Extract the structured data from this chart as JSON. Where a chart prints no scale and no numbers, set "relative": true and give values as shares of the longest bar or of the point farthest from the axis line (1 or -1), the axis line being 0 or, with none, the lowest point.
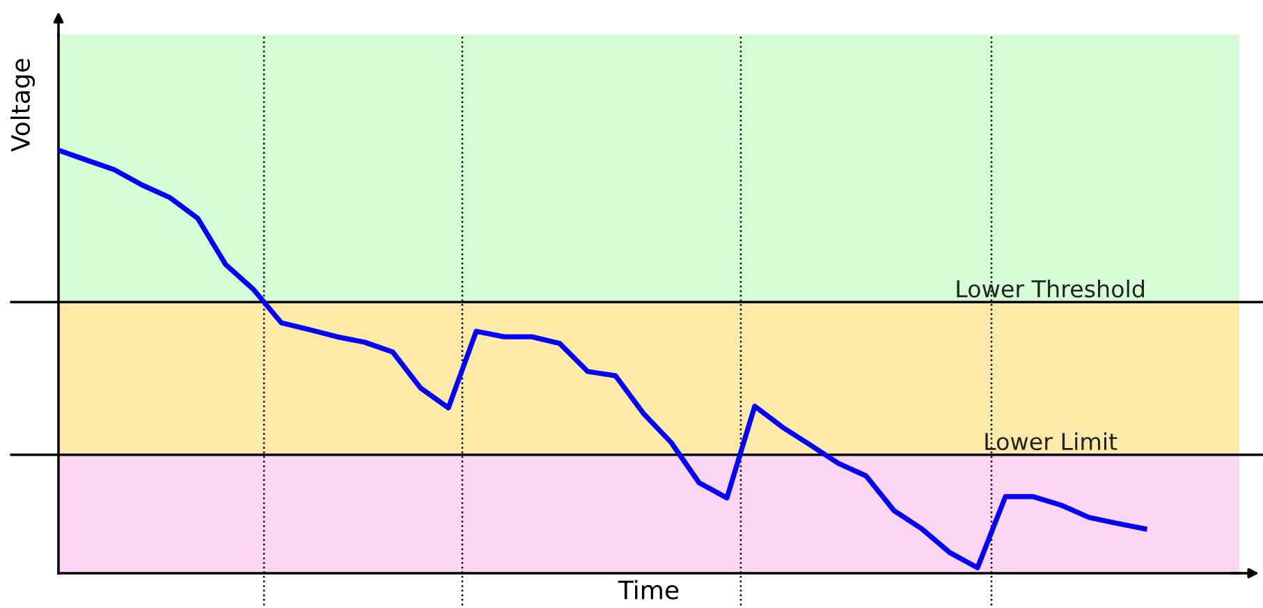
{
  "chart_data": {
    "type": "line",
    "relative": true,
    "xlabel": "Time",
    "ylabel": "Voltage",
    "categories": [
      null,
      null,
      null,
      null,
      null,
      null,
      null,
      null,
      null,
      null,
      null,
      null,
      null,
      null,
      null,
      null,
      null,
      null,
      null,
      null,
      null,
      null,
      null,
      null,
      null,
      null,
      null,
      null,
      null,
      null,
      null,
      null,
      null,
      null,
      null,
      null,
      null,
      null,
      null,
      null
    ],
    "series": [
      {
        "color": "#0000ff",
        "values": [
          1.0,
          0.977,
          0.954,
          0.918,
          0.888,
          0.839,
          0.73,
          0.671,
          0.592,
          0.576,
          0.559,
          0.546,
          0.523,
          0.438,
          0.391,
          0.572,
          0.559,
          0.559,
          0.543,
          0.477,
          0.467,
          0.378,
          0.309,
          0.214,
          0.178,
          0.395,
          0.345,
          0.303,
          0.26,
          0.23,
          0.148,
          0.105,
          0.049,
          0.013,
          0.181,
          0.181,
          0.161,
          0.132,
          0.118,
          0.105
        ]
      }
    ],
    "bands": [
      {
        "axis": "y",
        "from": 0.641,
        "to": 1.273,
        "color": "#d5fdd5"
      },
      {
        "axis": "y",
        "from": 0.28,
        "to": 0.641,
        "color": "#feeaa8"
      },
      {
        "axis": "y",
        "from": 0,
        "to": 0.28,
        "color": "#fdd5f5"
      }
    ],
    "ref_lines": [
      {
        "axis": "y",
        "value": 0.641,
        "label": "Lower Threshold",
        "color": "#000000",
        "line_style": "solid"
      },
      {
        "axis": "y",
        "value": 0.28,
        "label": "Lower Limit",
        "color": "#000000",
        "line_style": "solid"
      }
    ],
    "grid": false,
    "legend": false,
    "marker": "none",
    "line_style": "solid"
  }
}
